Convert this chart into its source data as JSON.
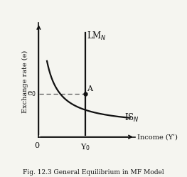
{
  "title": "Fig. 12.3 General Equilibrium in MF Model",
  "ylabel": "Exchange rate (e)",
  "xlabel": "Income (Yʹ)",
  "lm_label": "LM$_N$",
  "is_label": "IS$_N$",
  "lm_x": 4.5,
  "eq_x": 4.5,
  "eq_y": 3.5,
  "e0_label": "e$_0$",
  "y0_label": "Y$_0$",
  "A_label": "A",
  "bg_color": "#f5f5f0",
  "curve_color": "#111111",
  "dashed_color": "#555555",
  "axis_color": "#111111",
  "xmin": 0,
  "xmax": 9,
  "ymin": 0,
  "ymax": 9
}
